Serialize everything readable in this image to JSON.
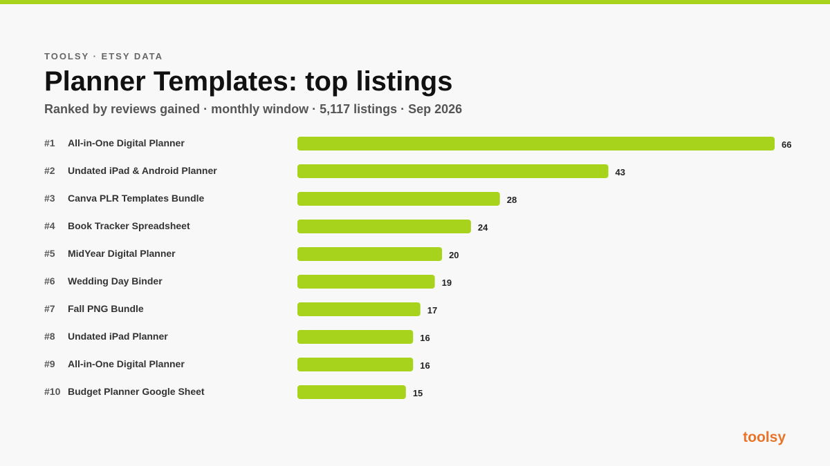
{
  "header": {
    "eyebrow": "TOOLSY · ETSY DATA",
    "title": "Planner Templates: top listings",
    "subtitle": "Ranked by reviews gained · monthly window · 5,117 listings · Sep 2026"
  },
  "brand": "toolsy",
  "colors": {
    "accent": "#a8d31c",
    "brand": "#e8742a",
    "bar": "#a8d31c"
  },
  "chart_data": {
    "type": "bar",
    "orientation": "horizontal",
    "ranks": [
      "#1",
      "#2",
      "#3",
      "#4",
      "#5",
      "#6",
      "#7",
      "#8",
      "#9",
      "#10"
    ],
    "categories": [
      "All-in-One Digital Planner",
      "Undated iPad & Android Planner",
      "Canva PLR Templates Bundle",
      "Book Tracker Spreadsheet",
      "MidYear Digital Planner",
      "Wedding Day Binder",
      "Fall PNG Bundle",
      "Undated iPad Planner",
      "All-in-One Digital Planner",
      "Budget Planner Google Sheet"
    ],
    "values": [
      66,
      43,
      28,
      24,
      20,
      19,
      17,
      16,
      16,
      15
    ],
    "xlim": [
      0,
      66
    ],
    "grid": false,
    "legend": "none"
  }
}
